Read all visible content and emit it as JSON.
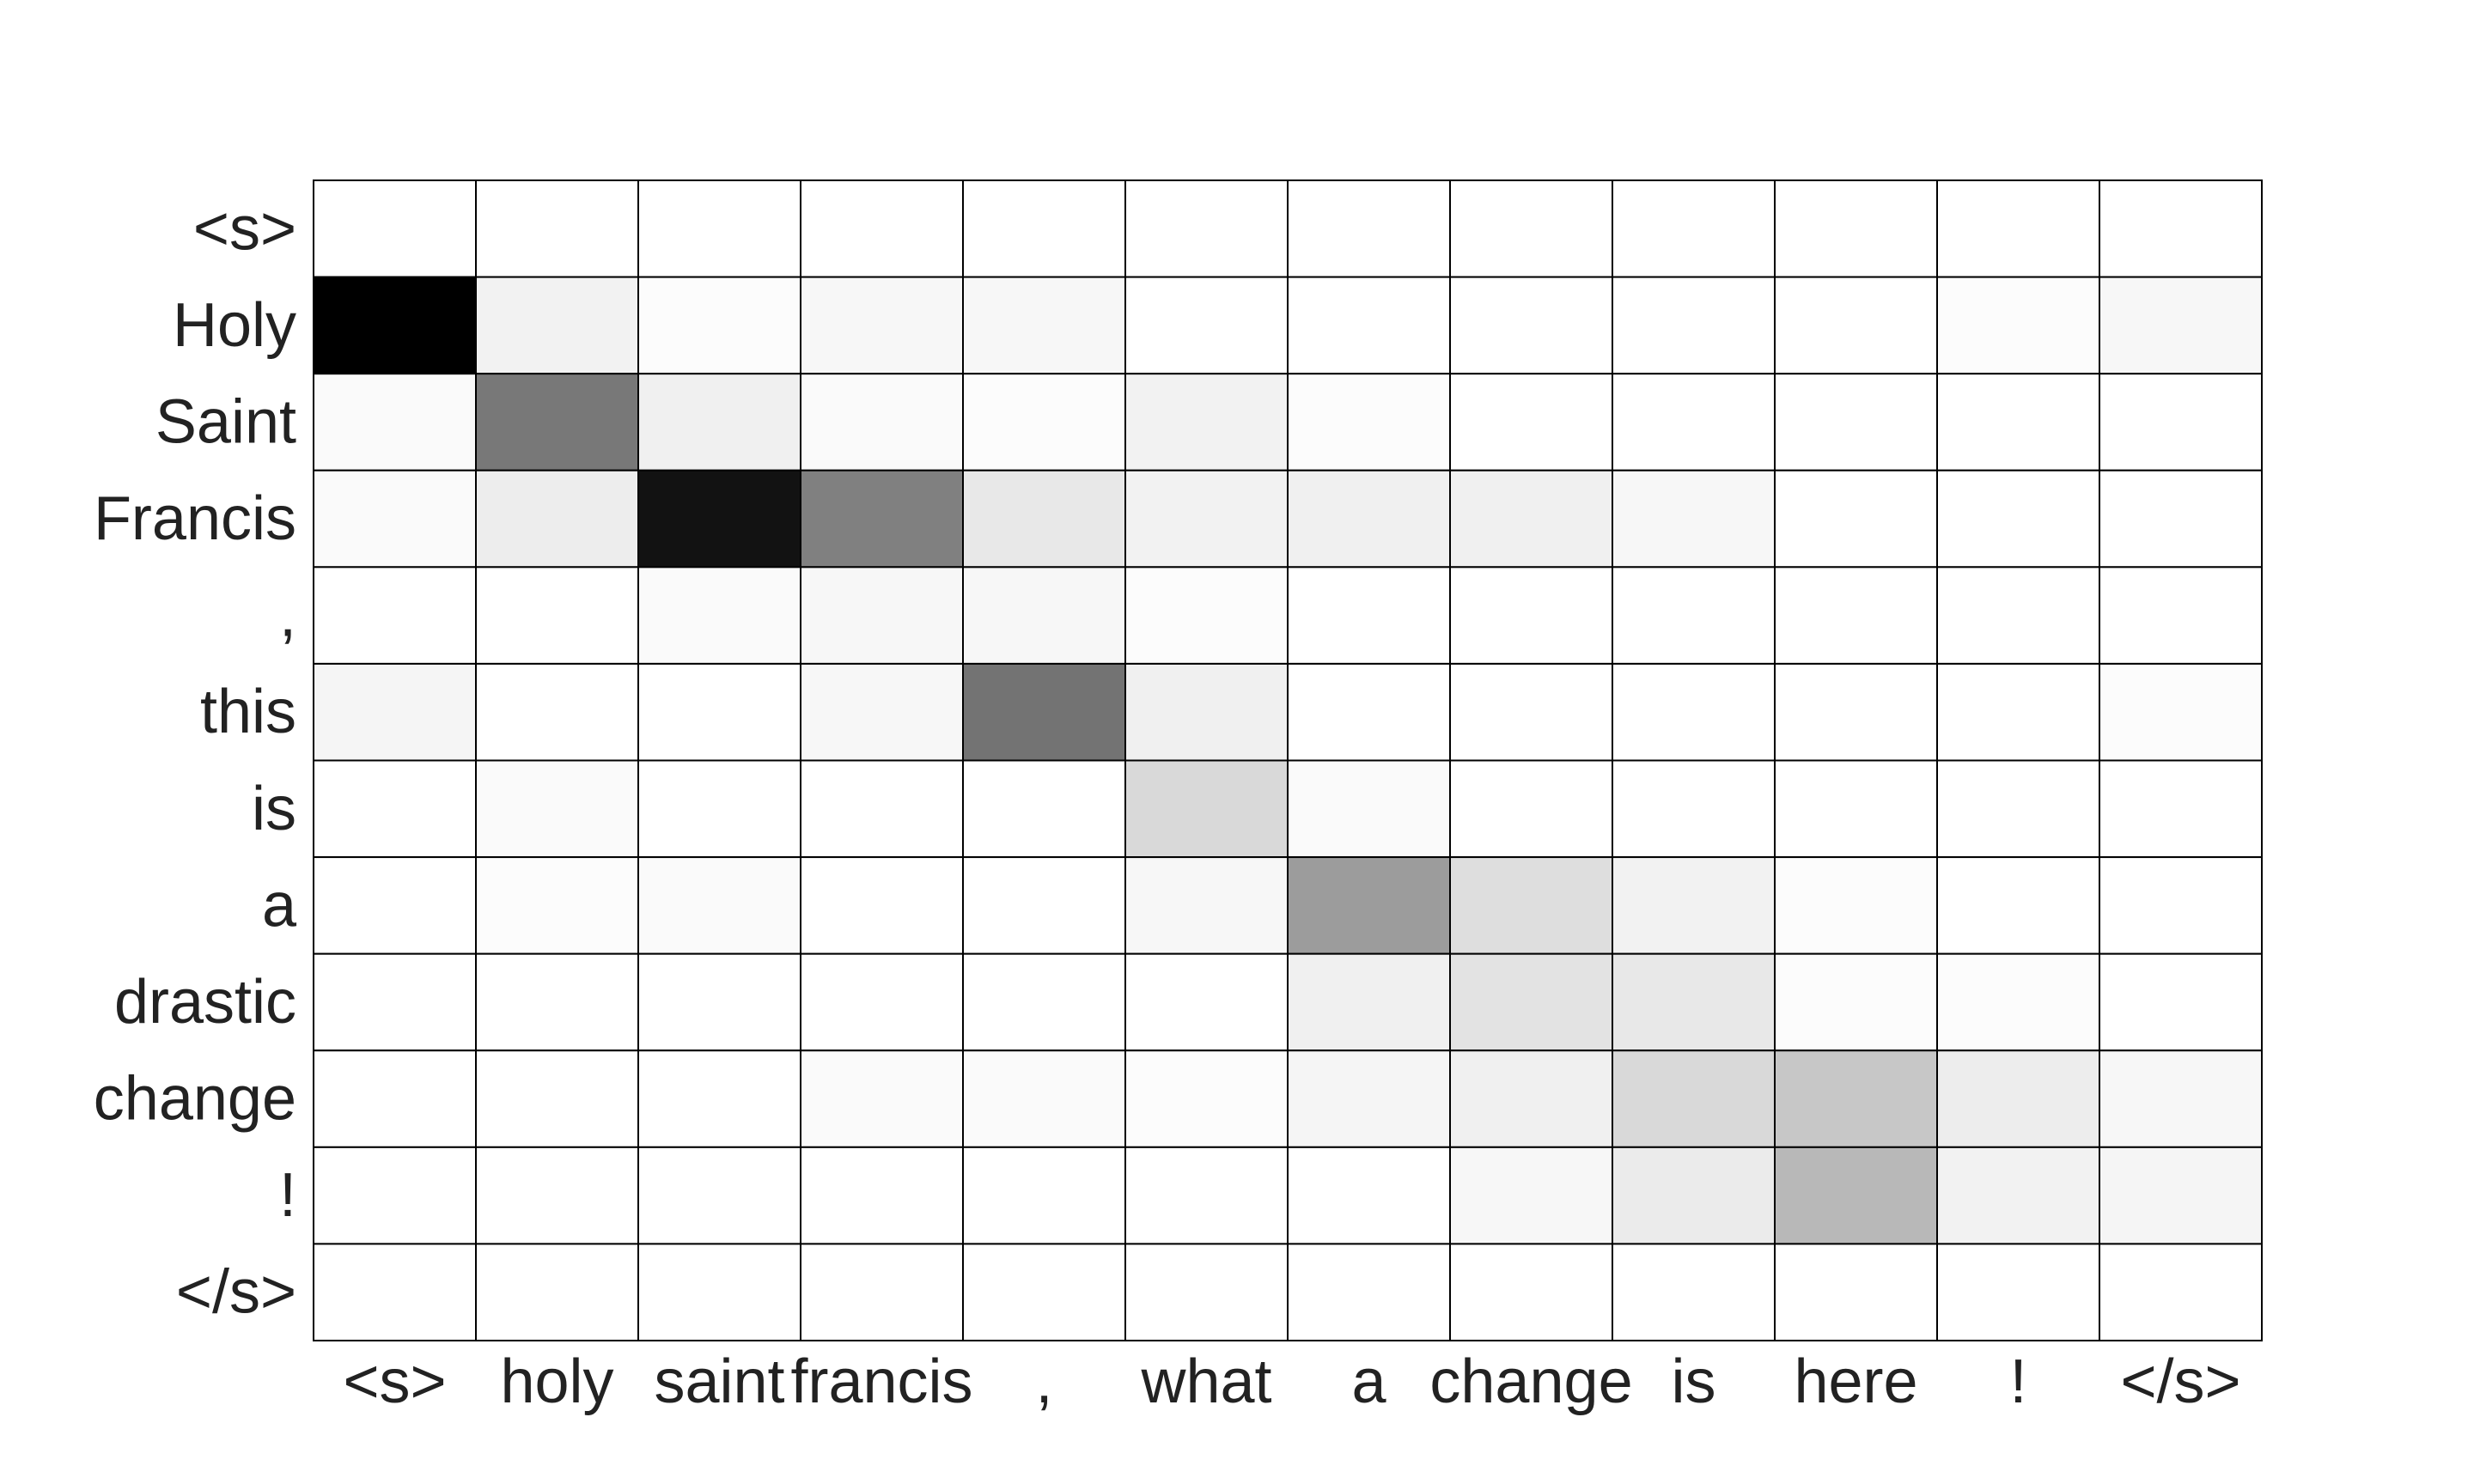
{
  "chart_data": {
    "type": "heatmap",
    "title": "",
    "xlabel": "",
    "ylabel": "",
    "colormap": "grayscale (white = low, black = high)",
    "value_range": [
      0,
      1
    ],
    "grid": true,
    "x_labels": [
      "<s>",
      "holy",
      "saint",
      "francis",
      ",",
      "what",
      "a",
      "change",
      "is",
      "here",
      "!",
      "</s>"
    ],
    "y_labels": [
      "<s>",
      "Holy",
      "Saint",
      "Francis",
      ",",
      "this",
      "is",
      "a",
      "drastic",
      "change",
      "!",
      "</s>"
    ],
    "values": [
      [
        0.0,
        0.0,
        0.0,
        0.0,
        0.0,
        0.0,
        0.0,
        0.0,
        0.0,
        0.0,
        0.0,
        0.0
      ],
      [
        1.0,
        0.05,
        0.01,
        0.03,
        0.03,
        0.0,
        0.0,
        0.0,
        0.0,
        0.0,
        0.01,
        0.03
      ],
      [
        0.02,
        0.53,
        0.06,
        0.02,
        0.01,
        0.05,
        0.01,
        0.0,
        0.0,
        0.0,
        0.0,
        0.0
      ],
      [
        0.02,
        0.07,
        0.93,
        0.5,
        0.09,
        0.05,
        0.06,
        0.06,
        0.03,
        0.0,
        0.0,
        0.0
      ],
      [
        0.0,
        0.0,
        0.02,
        0.03,
        0.03,
        0.01,
        0.0,
        0.0,
        0.0,
        0.0,
        0.0,
        0.0
      ],
      [
        0.04,
        0.0,
        0.0,
        0.03,
        0.55,
        0.06,
        0.0,
        0.0,
        0.0,
        0.0,
        0.0,
        0.01
      ],
      [
        0.0,
        0.02,
        0.0,
        0.0,
        0.0,
        0.15,
        0.02,
        0.0,
        0.0,
        0.0,
        0.0,
        0.0
      ],
      [
        0.0,
        0.01,
        0.02,
        0.0,
        0.0,
        0.03,
        0.39,
        0.13,
        0.05,
        0.01,
        0.0,
        0.0
      ],
      [
        0.0,
        0.0,
        0.0,
        0.0,
        0.0,
        0.0,
        0.06,
        0.11,
        0.09,
        0.01,
        0.01,
        0.0
      ],
      [
        0.0,
        0.0,
        0.0,
        0.02,
        0.02,
        0.01,
        0.04,
        0.06,
        0.15,
        0.22,
        0.07,
        0.03
      ],
      [
        0.0,
        0.0,
        0.0,
        0.0,
        0.0,
        0.0,
        0.0,
        0.03,
        0.08,
        0.28,
        0.05,
        0.04
      ],
      [
        0.0,
        0.0,
        0.0,
        0.0,
        0.0,
        0.0,
        0.0,
        0.0,
        0.0,
        0.0,
        0.0,
        0.0
      ]
    ]
  }
}
